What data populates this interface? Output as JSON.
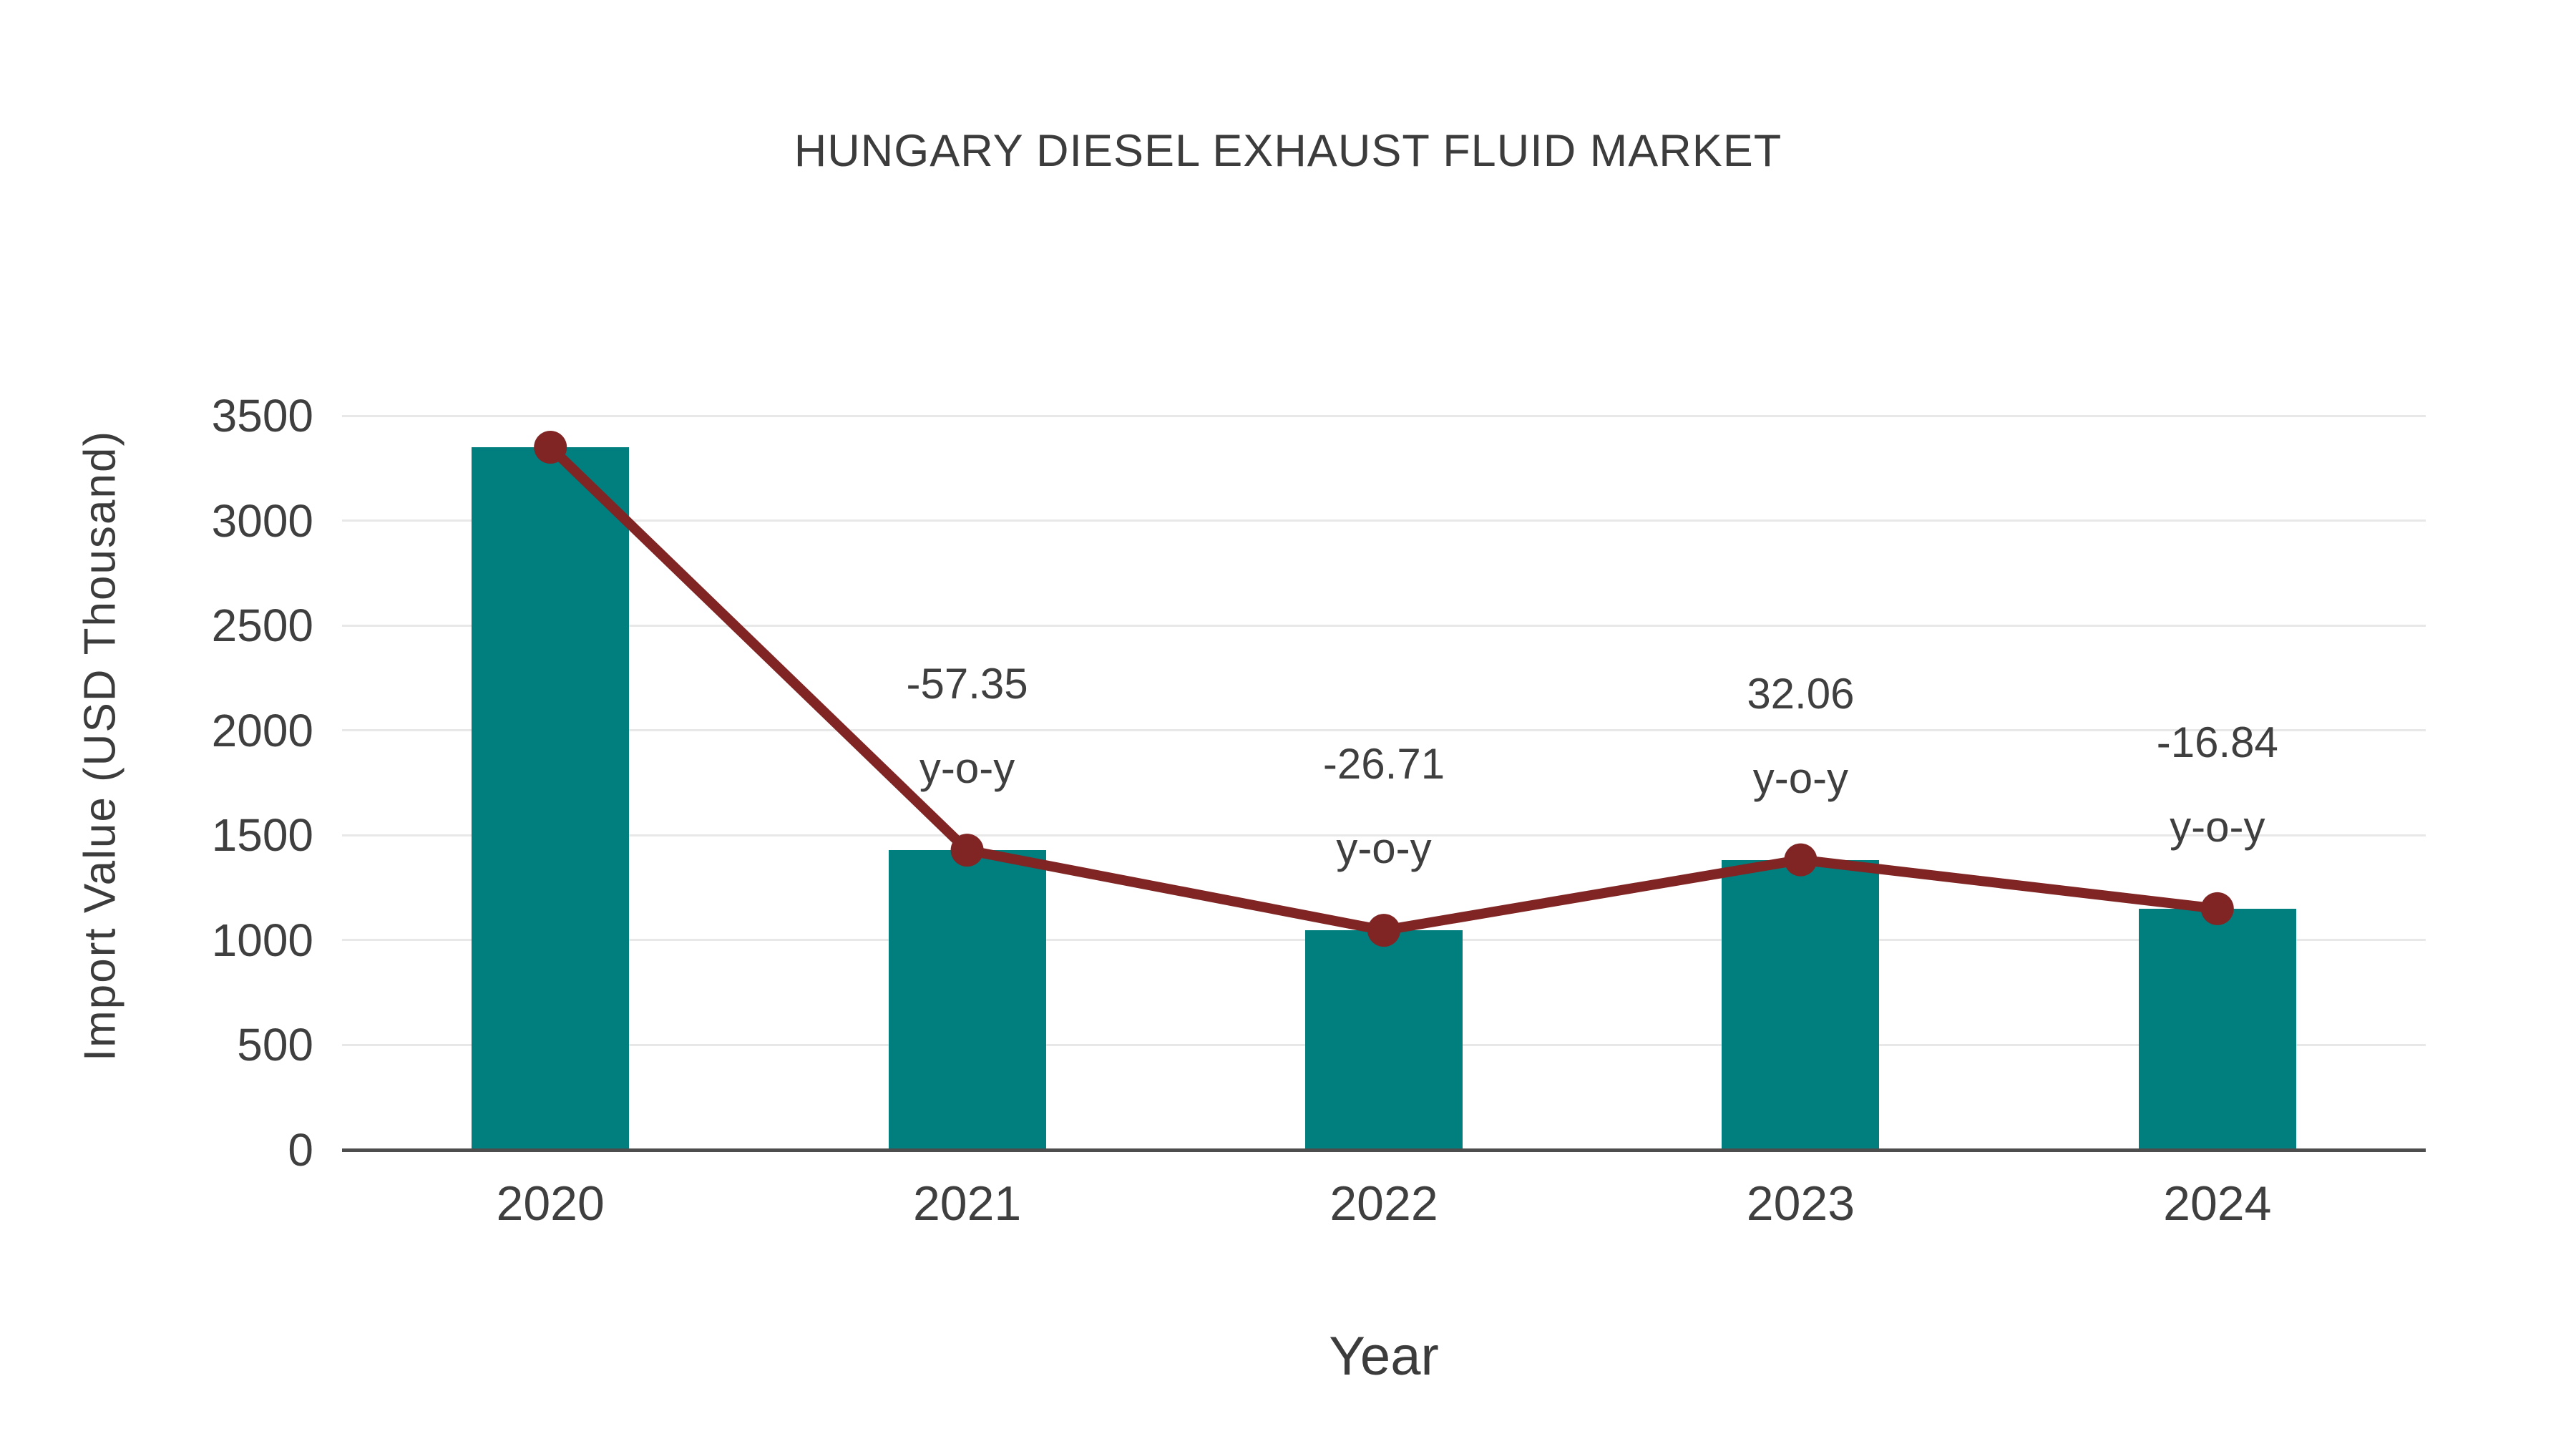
{
  "page": {
    "background": "#ffffff"
  },
  "chart_data": {
    "type": "bar",
    "title": "HUNGARY DIESEL EXHAUST FLUID MARKET",
    "xlabel": "Year",
    "ylabel": "Import Value (USD Thousand)",
    "categories": [
      "2020",
      "2021",
      "2022",
      "2023",
      "2024"
    ],
    "series": [
      {
        "name": "Import Value bars",
        "type": "bar",
        "color": "#017E7E",
        "values": [
          3350,
          1429,
          1047,
          1383,
          1150
        ]
      },
      {
        "name": "Import Value trend line",
        "type": "line",
        "color": "#802424",
        "values": [
          3350,
          1429,
          1047,
          1383,
          1150
        ]
      }
    ],
    "annotations": [
      {
        "category": "2021",
        "lines": [
          "-57.35",
          "y-o-y"
        ]
      },
      {
        "category": "2022",
        "lines": [
          "-26.71",
          "y-o-y"
        ]
      },
      {
        "category": "2023",
        "lines": [
          "32.06",
          "y-o-y"
        ]
      },
      {
        "category": "2024",
        "lines": [
          "-16.84",
          "y-o-y"
        ]
      }
    ],
    "yticks": [
      0,
      500,
      1000,
      1500,
      2000,
      2500,
      3000,
      3500
    ],
    "ylim": [
      0,
      3500
    ],
    "grid": "horizontal",
    "legend": "none",
    "colors": {
      "text": "#3F3F3F",
      "grid": "#E8E8E8",
      "axis": "#4D4D4D",
      "bar": "#017E7E",
      "line": "#802424"
    }
  }
}
